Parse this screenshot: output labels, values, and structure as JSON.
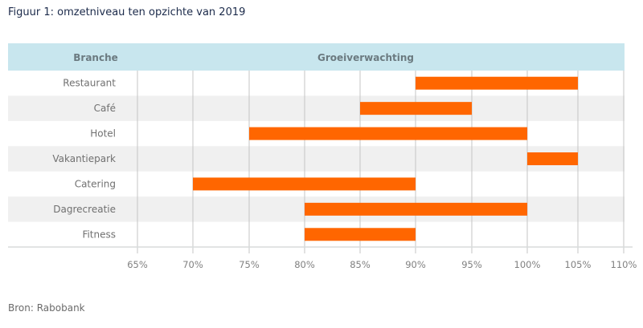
{
  "page": {
    "title": "Figuur 1: omzetniveau ten opzichte van 2019",
    "source": "Bron: Rabobank"
  },
  "colors": {
    "bar": "#ff6600",
    "header_bg": "#c8e6ee",
    "row_stripe": "#f0f0f0",
    "gridline": "#c4c4c4"
  },
  "chart_data": {
    "type": "bar",
    "orientation": "horizontal-range",
    "title": "Figuur 1: omzetniveau ten opzichte van 2019",
    "column_headers": [
      "Branche",
      "Groeiverwachting"
    ],
    "categories": [
      "Restaurant",
      "Café",
      "Hotel",
      "Vakantiepark",
      "Catering",
      "Dagrecreatie",
      "Fitness"
    ],
    "ranges": [
      {
        "category": "Restaurant",
        "low": 90,
        "high": 105
      },
      {
        "category": "Café",
        "low": 85,
        "high": 95
      },
      {
        "category": "Hotel",
        "low": 75,
        "high": 100
      },
      {
        "category": "Vakantiepark",
        "low": 100,
        "high": 105
      },
      {
        "category": "Catering",
        "low": 70,
        "high": 90
      },
      {
        "category": "Dagrecreatie",
        "low": 80,
        "high": 100
      },
      {
        "category": "Fitness",
        "low": 80,
        "high": 90
      }
    ],
    "xticks": [
      65,
      70,
      75,
      80,
      85,
      90,
      95,
      100,
      105,
      110
    ],
    "xtick_labels": [
      "65%",
      "70%",
      "75%",
      "80%",
      "85%",
      "90%",
      "95%",
      "100%",
      "105%",
      "110%"
    ],
    "xlim": [
      65,
      110
    ],
    "xlabel": "",
    "ylabel": "",
    "unit": "%",
    "grid": true,
    "source": "Bron: Rabobank"
  }
}
